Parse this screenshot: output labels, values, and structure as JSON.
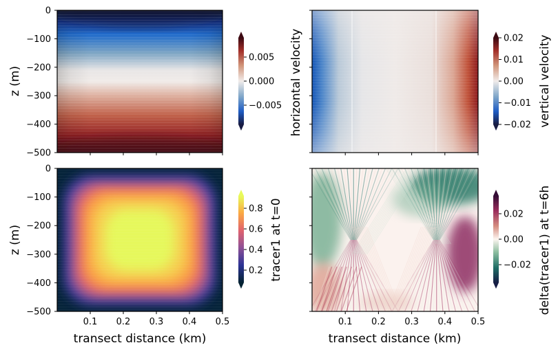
{
  "chart_data": [
    {
      "type": "heatmap",
      "colormap": "balance",
      "panel": "top-left",
      "ylabel": "z (m)",
      "xlabel": "",
      "colorbar_label": "",
      "xlim": [
        0,
        0.5
      ],
      "ylim": [
        -500,
        0
      ],
      "clim": [
        -0.009,
        0.009
      ],
      "xticks": [
        "0.1",
        "0.2",
        "0.3",
        "0.4",
        "0.5"
      ],
      "xticks_labeled": false,
      "yticks": [
        "0",
        "−100",
        "−200",
        "−300",
        "−400",
        "−500"
      ],
      "yticks_labeled": true,
      "cbar_ticks": [
        "0.005",
        "0.000",
        "−0.005"
      ],
      "pattern": "horizontal velocity: negative near surface, positive near bottom, zero near z = -250"
    },
    {
      "type": "heatmap",
      "colormap": "balance",
      "panel": "top-right",
      "ylabel": "horizontal velocity",
      "xlabel": "",
      "colorbar_label": "vertical velocity",
      "xlim": [
        0,
        0.5
      ],
      "ylim": [
        -500,
        0
      ],
      "clim": [
        -0.02,
        0.02
      ],
      "xticks": [
        "0.1",
        "0.2",
        "0.3",
        "0.4",
        "0.5"
      ],
      "xticks_labeled": false,
      "yticks_labeled": false,
      "cbar_ticks": [
        "0.02",
        "0.01",
        "0.00",
        "−0.01",
        "−0.02"
      ],
      "pattern": "vertical velocity: negative at left edge, positive at right edge, near zero in centre"
    },
    {
      "type": "heatmap",
      "colormap": "thermal",
      "panel": "bottom-left",
      "ylabel": "z (m)",
      "xlabel": "transect distance (km)",
      "colorbar_label": "tracer1 at t=0",
      "xlim": [
        0,
        0.5
      ],
      "ylim": [
        -500,
        0
      ],
      "clim": [
        0.08,
        0.92
      ],
      "xticks": [
        "0.1",
        "0.2",
        "0.3",
        "0.4",
        "0.5"
      ],
      "xticks_labeled": true,
      "yticks": [
        "0",
        "−100",
        "−200",
        "−300",
        "−400",
        "−500"
      ],
      "yticks_labeled": true,
      "cbar_ticks": [
        "0.8",
        "0.6",
        "0.4",
        "0.2"
      ],
      "pattern": "tracer peaks (~0.9) in centre around x = 0.25, z = -250, decaying to ~0.1 at edges"
    },
    {
      "type": "heatmap",
      "colormap": "curl",
      "panel": "bottom-right",
      "ylabel": "",
      "xlabel": "transect distance (km)",
      "colorbar_label": "delta(tracer1) at t=6h",
      "xlim": [
        0,
        0.5
      ],
      "ylim": [
        -500,
        0
      ],
      "clim": [
        -0.034,
        0.034
      ],
      "xticks": [
        "0.1",
        "0.2",
        "0.3",
        "0.4",
        "0.5"
      ],
      "xticks_labeled": true,
      "yticks_labeled": false,
      "cbar_ticks": [
        "0.02",
        "0.00",
        "−0.02"
      ],
      "pattern": "X-shaped bands crossing at x = 0.125 and x = 0.375 near z = -250; positive (purple) lower right, negative (green) upper right and left"
    }
  ]
}
